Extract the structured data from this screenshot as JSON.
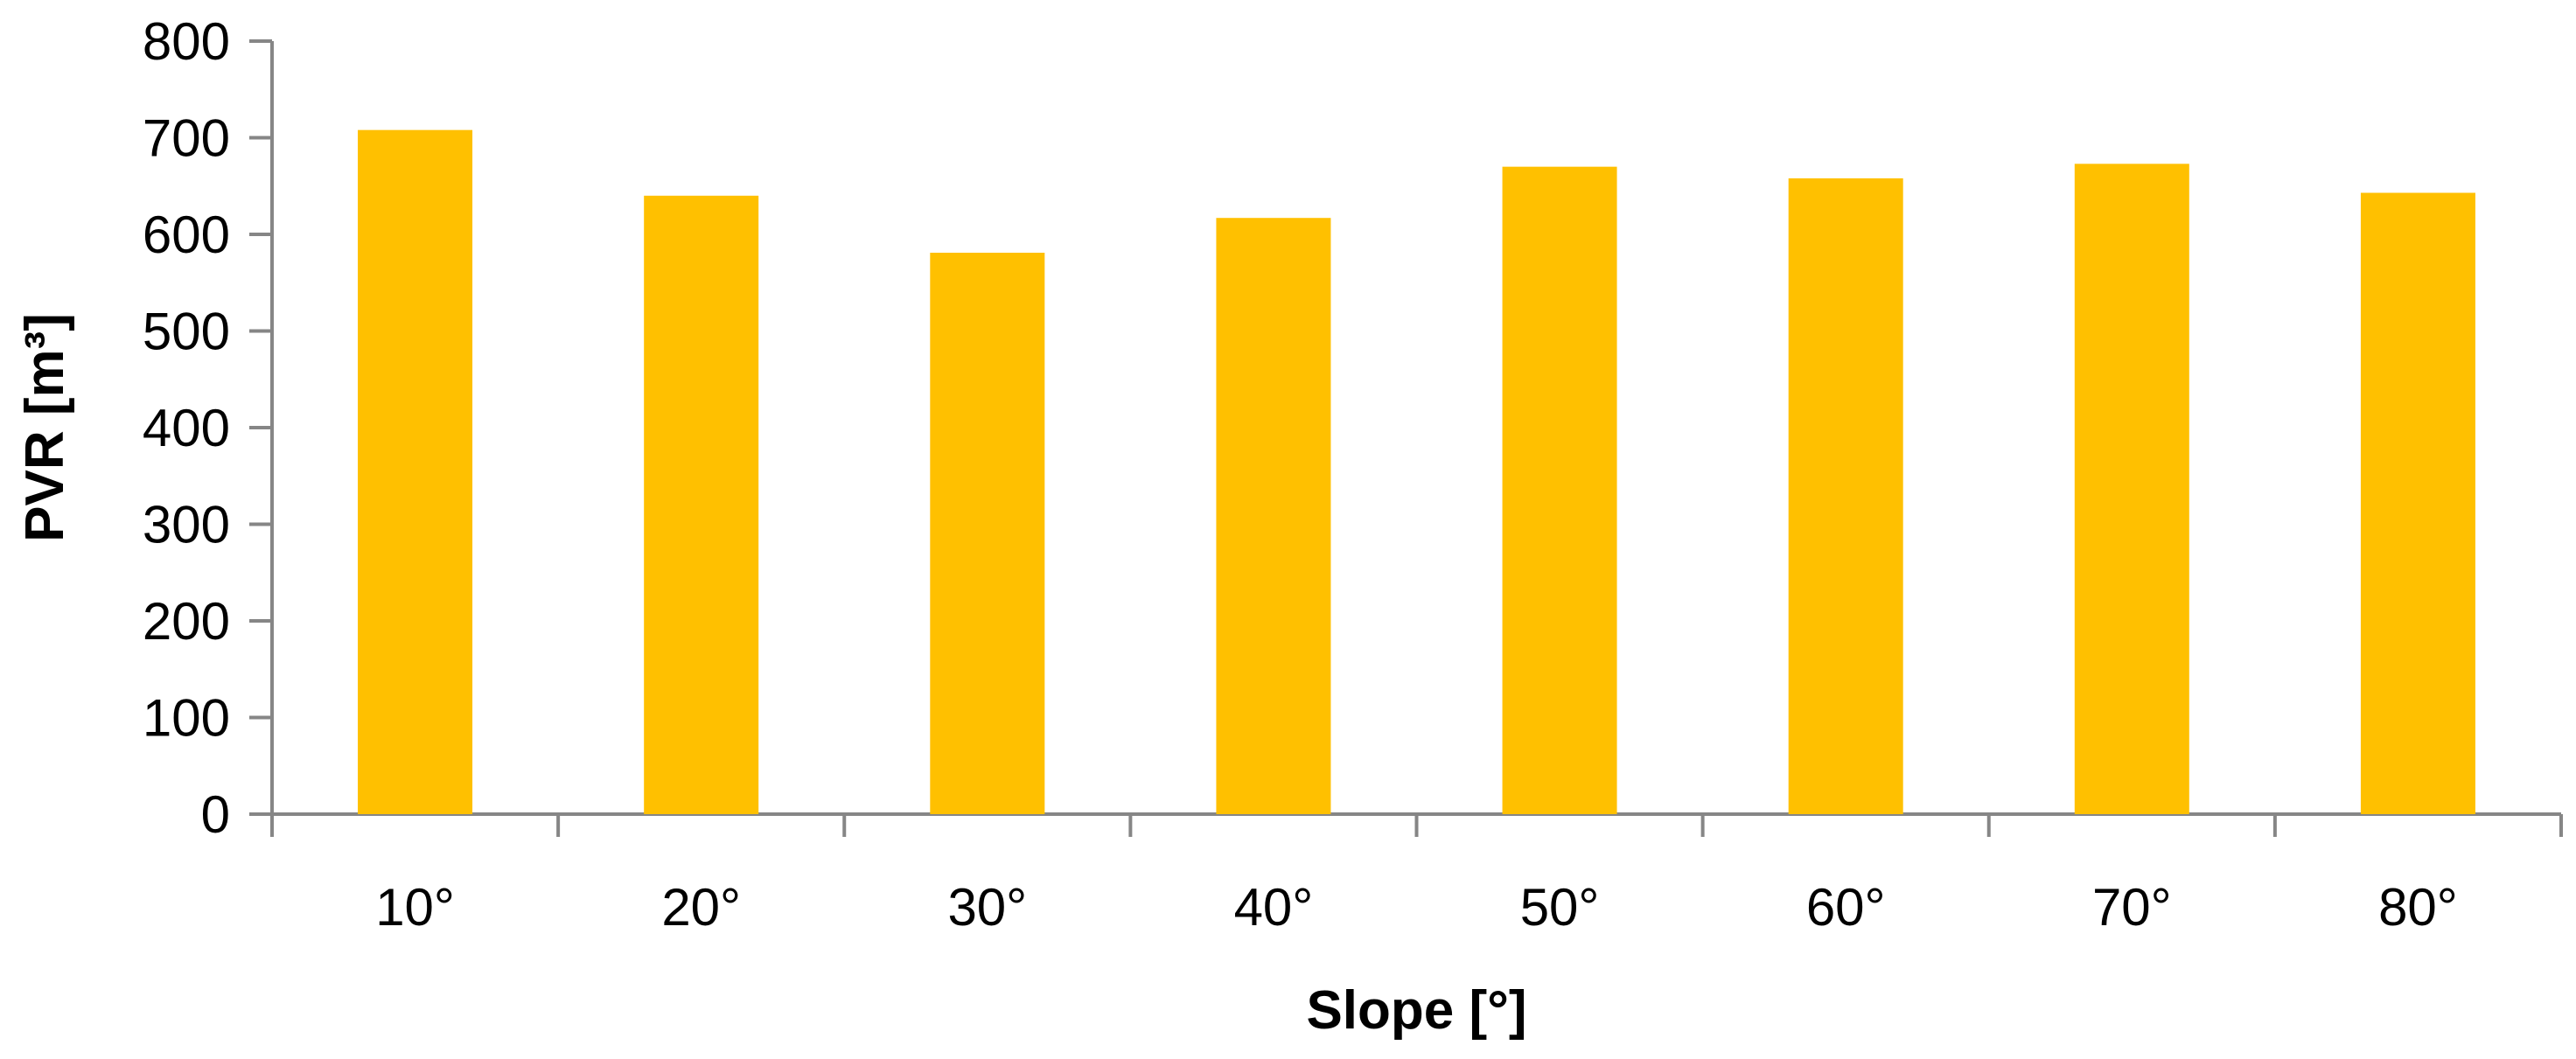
{
  "chart_data": {
    "type": "bar",
    "categories": [
      "10°",
      "20°",
      "30°",
      "40°",
      "50°",
      "60°",
      "70°",
      "80°"
    ],
    "values": [
      708,
      640,
      581,
      617,
      670,
      658,
      673,
      643
    ],
    "xlabel": "Slope [°]",
    "ylabel": "PVR [m³]",
    "ylim": [
      0,
      800
    ],
    "yticks": [
      0,
      100,
      200,
      300,
      400,
      500,
      600,
      700,
      800
    ],
    "grid": false,
    "legend": "none",
    "bar_color": "#FFC000",
    "axis_color": "#868686"
  }
}
